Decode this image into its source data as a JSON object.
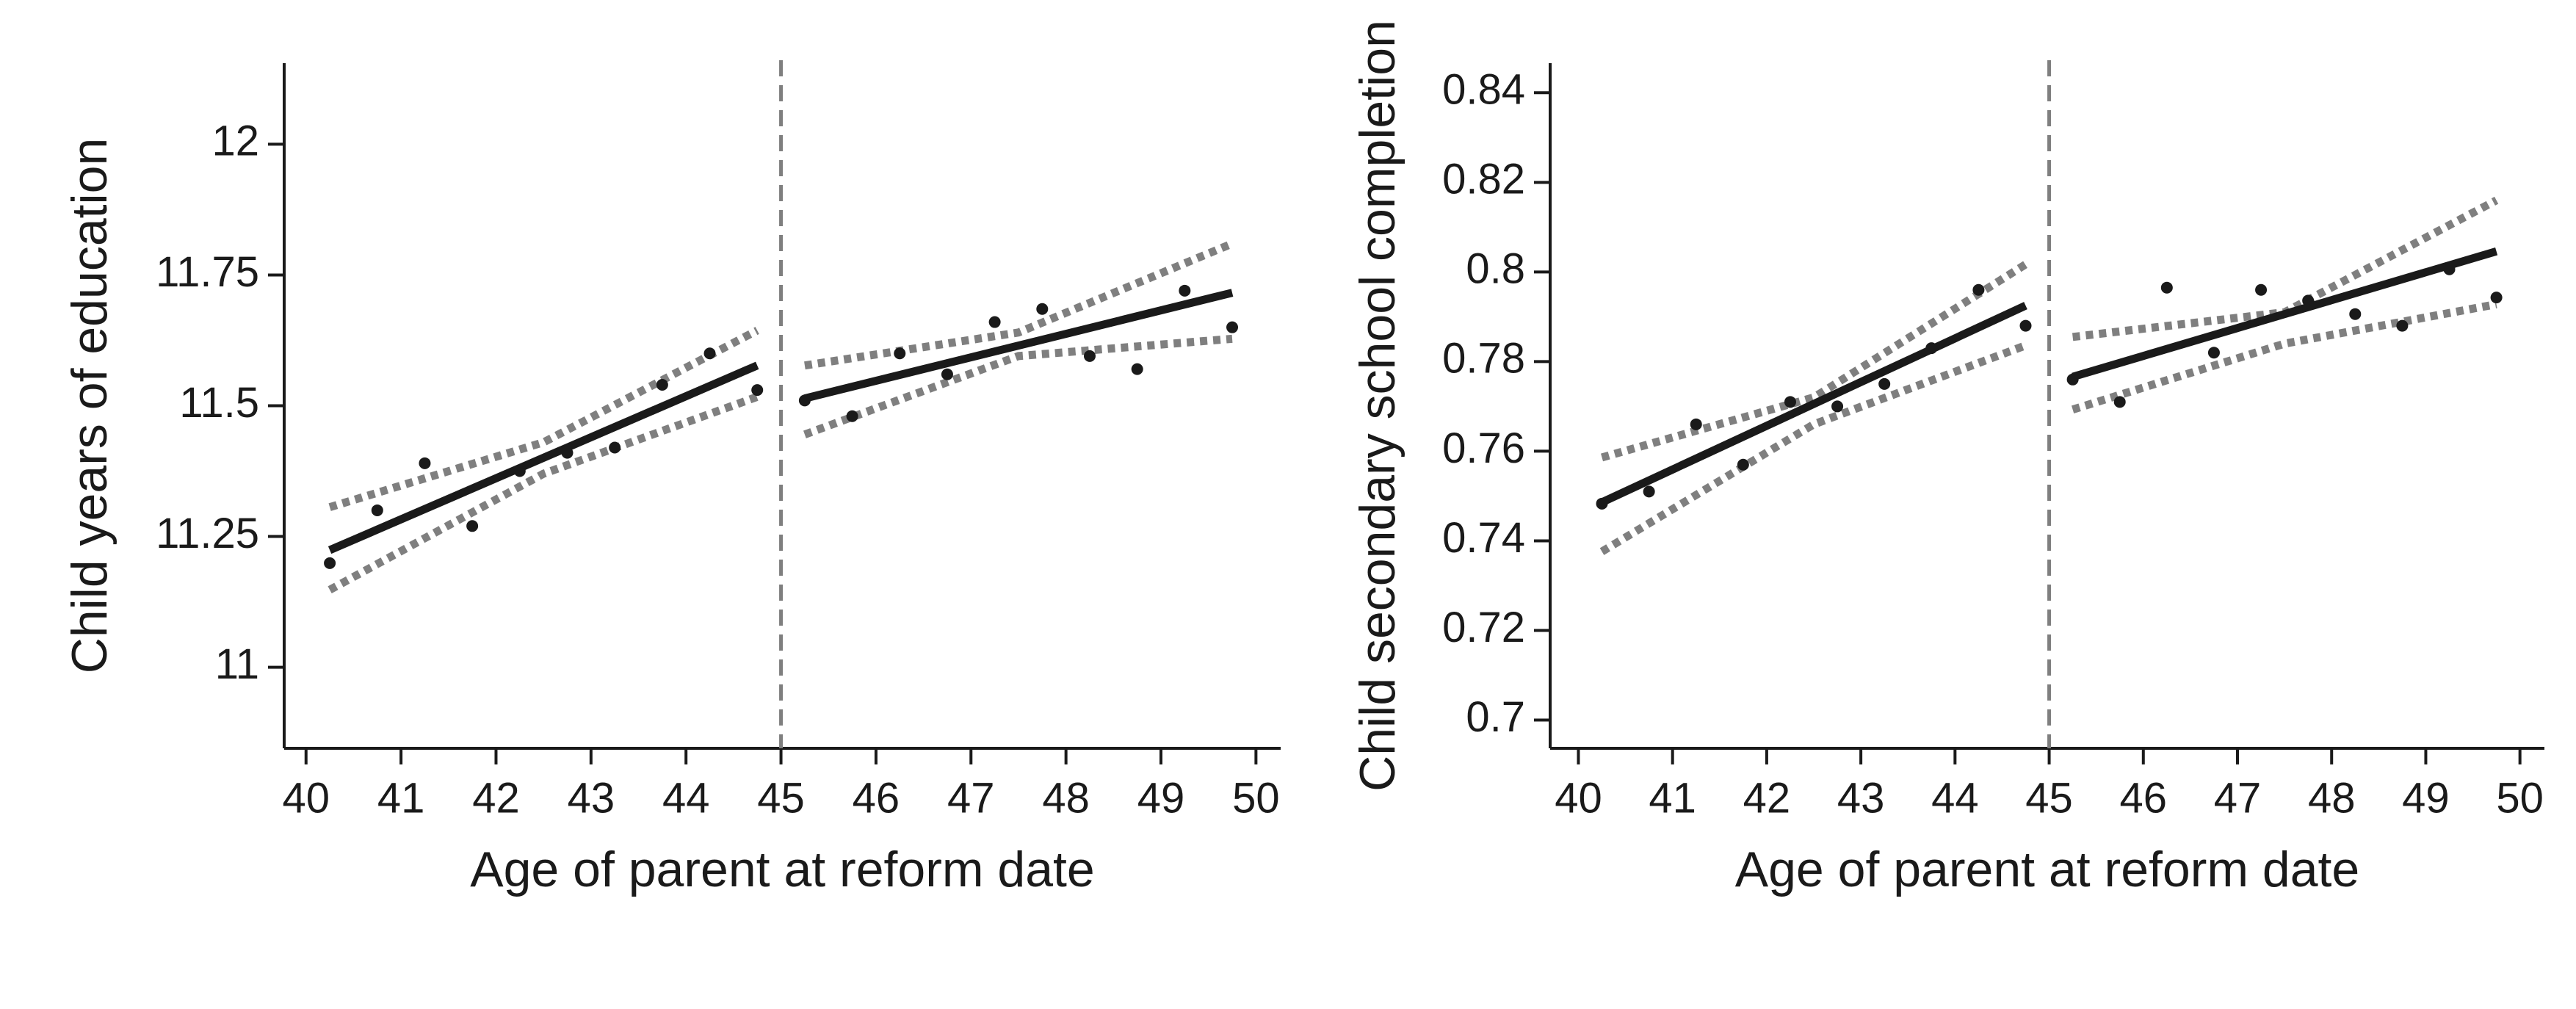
{
  "chart_data": [
    {
      "type": "scatter",
      "y_label": "Child years of education",
      "x_label": "Age of parent at reform date",
      "xlim": [
        39.77,
        50.26
      ],
      "ylim": [
        10.845,
        12.155
      ],
      "xticks": [
        40,
        41,
        42,
        43,
        44,
        45,
        46,
        47,
        48,
        49,
        50
      ],
      "yticks": [
        11,
        11.25,
        11.5,
        11.75,
        12
      ],
      "cutoff": 45,
      "point_color": "#1a1a1a",
      "fit_color": "#1a1a1a",
      "ci_color": "#7f7f7f",
      "cutoff_color": "#7f7f7f",
      "points": {
        "x": [
          40.25,
          40.75,
          41.25,
          41.75,
          42.25,
          42.75,
          43.25,
          43.75,
          44.25,
          44.75,
          45.25,
          45.75,
          46.25,
          46.75,
          47.25,
          47.75,
          48.25,
          48.75,
          49.25,
          49.75
        ],
        "values": [
          11.199,
          11.3,
          11.39,
          11.27,
          11.375,
          11.41,
          11.42,
          11.54,
          11.6,
          11.53,
          11.51,
          11.48,
          11.6,
          11.56,
          11.66,
          11.685,
          11.595,
          11.57,
          11.72,
          11.65
        ]
      },
      "fit": [
        {
          "x": [
            40.25,
            44.75
          ],
          "values": [
            11.224,
            11.577
          ]
        },
        {
          "x": [
            45.25,
            49.75
          ],
          "values": [
            11.514,
            11.716
          ]
        }
      ],
      "ci": [
        {
          "x": [
            40.25,
            42.5,
            44.75
          ],
          "values": [
            11.306,
            11.43,
            11.644
          ]
        },
        {
          "x": [
            40.25,
            42.5,
            44.75
          ],
          "values": [
            11.148,
            11.37,
            11.517
          ]
        },
        {
          "x": [
            45.25,
            47.5,
            49.75
          ],
          "values": [
            11.577,
            11.64,
            11.81
          ]
        },
        {
          "x": [
            45.25,
            47.5,
            49.75
          ],
          "values": [
            11.445,
            11.595,
            11.628
          ]
        }
      ]
    },
    {
      "type": "scatter",
      "y_label": "Child secondary school completion",
      "x_label": "Age of parent at reform date",
      "xlim": [
        39.7,
        50.26
      ],
      "ylim": [
        0.6937,
        0.8466
      ],
      "xticks": [
        40,
        41,
        42,
        43,
        44,
        45,
        46,
        47,
        48,
        49,
        50
      ],
      "yticks": [
        0.7,
        0.72,
        0.74,
        0.76,
        0.78,
        0.8,
        0.82,
        0.84
      ],
      "cutoff": 45,
      "point_color": "#1a1a1a",
      "fit_color": "#1a1a1a",
      "ci_color": "#7f7f7f",
      "cutoff_color": "#7f7f7f",
      "points": {
        "x": [
          40.25,
          40.75,
          41.25,
          41.75,
          42.25,
          42.75,
          43.25,
          43.75,
          44.25,
          44.75,
          45.25,
          45.75,
          46.25,
          46.75,
          47.25,
          47.75,
          48.25,
          48.75,
          49.25,
          49.75
        ],
        "values": [
          0.7483,
          0.751,
          0.766,
          0.757,
          0.771,
          0.77,
          0.775,
          0.783,
          0.796,
          0.788,
          0.776,
          0.771,
          0.7965,
          0.782,
          0.796,
          0.7936,
          0.7906,
          0.788,
          0.8006,
          0.7943
        ]
      },
      "fit": [
        {
          "x": [
            40.25,
            44.75
          ],
          "values": [
            0.7486,
            0.7925
          ]
        },
        {
          "x": [
            45.25,
            49.75
          ],
          "values": [
            0.7766,
            0.8046
          ]
        }
      ],
      "ci": [
        {
          "x": [
            40.25,
            42.5,
            44.75
          ],
          "values": [
            0.7586,
            0.772,
            0.8017
          ]
        },
        {
          "x": [
            40.25,
            42.5,
            44.75
          ],
          "values": [
            0.7376,
            0.766,
            0.7836
          ]
        },
        {
          "x": [
            45.25,
            47.5,
            49.75
          ],
          "values": [
            0.7855,
            0.791,
            0.816
          ]
        },
        {
          "x": [
            45.25,
            47.5,
            49.75
          ],
          "values": [
            0.7693,
            0.784,
            0.7928
          ]
        }
      ]
    }
  ]
}
